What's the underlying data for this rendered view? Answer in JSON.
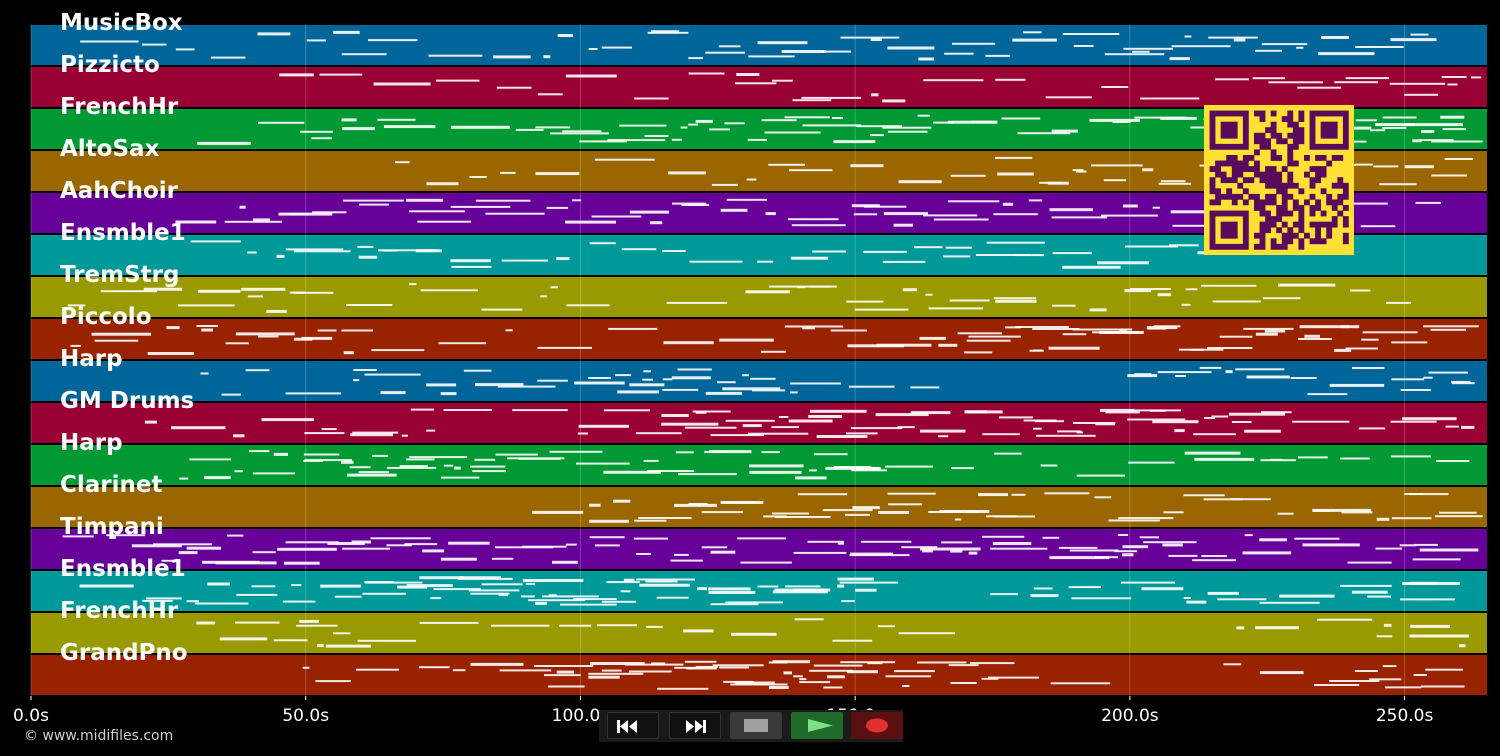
{
  "tracks": [
    {
      "label": "MusicBox",
      "color": "#006699"
    },
    {
      "label": "Pizzicto",
      "color": "#990033"
    },
    {
      "label": "FrenchHr",
      "color": "#009933"
    },
    {
      "label": "AltoSax",
      "color": "#996600"
    },
    {
      "label": "AahChoir",
      "color": "#660099"
    },
    {
      "label": "Ensmble1",
      "color": "#009999"
    },
    {
      "label": "TremStrg",
      "color": "#999900"
    },
    {
      "label": "Piccolo",
      "color": "#992200"
    },
    {
      "label": "Harp",
      "color": "#006699"
    },
    {
      "label": "GM Drums",
      "color": "#990033"
    },
    {
      "label": "Harp",
      "color": "#009933"
    },
    {
      "label": "Clarinet",
      "color": "#996600"
    },
    {
      "label": "Timpani",
      "color": "#660099"
    },
    {
      "label": "Ensmble1",
      "color": "#009999"
    },
    {
      "label": "FrenchHr",
      "color": "#999900"
    },
    {
      "label": "GrandPno",
      "color": "#992200"
    }
  ],
  "timeline": {
    "min_seconds": 0,
    "max_seconds": 265,
    "ticks": [
      {
        "value": 0,
        "label": "0.0s"
      },
      {
        "value": 50,
        "label": "50.0s"
      },
      {
        "value": 100,
        "label": "100.0s"
      },
      {
        "value": 150,
        "label": "150.0s"
      },
      {
        "value": 200,
        "label": "200.0s"
      },
      {
        "value": 250,
        "label": "250.0s"
      }
    ]
  },
  "footer": {
    "copyright": "© www.midifiles.com"
  },
  "controls": {
    "rewind": "rewind-icon",
    "fast_forward": "fast-forward-icon",
    "stop": "stop-icon",
    "play": "play-icon",
    "record": "record-icon"
  },
  "colors": {
    "note": "#ffffff",
    "qr_background": "#ffe135",
    "qr_foreground": "#5a0a5a"
  }
}
